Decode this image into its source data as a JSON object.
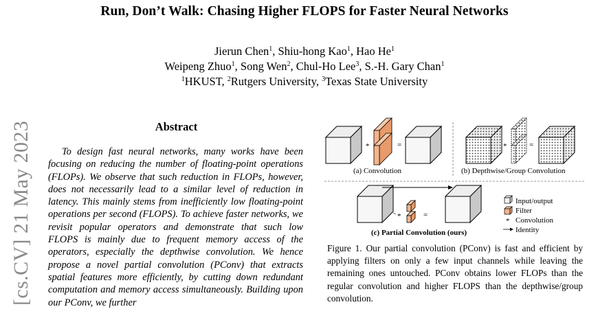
{
  "paper": {
    "title": "Run, Don’t Walk: Chasing Higher FLOPS for Faster Neural Networks",
    "authors_line1": [
      {
        "name": "Jierun Chen",
        "aff": "1"
      },
      {
        "name": "Shiu-hong Kao",
        "aff": "1"
      },
      {
        "name": "Hao He",
        "aff": "1"
      }
    ],
    "authors_line2": [
      {
        "name": "Weipeng Zhuo",
        "aff": "1"
      },
      {
        "name": "Song Wen",
        "aff": "2"
      },
      {
        "name": "Chul-Ho Lee",
        "aff": "3"
      },
      {
        "name": "S.-H. Gary Chan",
        "aff": "1"
      }
    ],
    "affiliations": [
      {
        "sup": "1",
        "name": "HKUST"
      },
      {
        "sup": "2",
        "name": "Rutgers University"
      },
      {
        "sup": "3",
        "name": "Texas State University"
      }
    ],
    "arxiv_stamp": "[cs.CV]  21 May 2023",
    "abstract_heading": "Abstract",
    "abstract_text": "To design fast neural networks, many works have been focusing on reducing the number of floating-point operations (FLOPs). We observe that such reduction in FLOPs, however, does not necessarily lead to a similar level of reduction in latency. This mainly stems from inefficiently low floating-point operations per second (FLOPS). To achieve faster networks, we revisit popular operators and demonstrate that such low FLOPS is mainly due to frequent memory access of the operators, especially the depthwise convolution. We hence propose a novel partial convolution (PConv) that extracts spatial features more efficiently, by cutting down redundant computation and memory access simultaneously. Building upon our PConv, we further",
    "figure": {
      "sub_a": "(a) Convolution",
      "sub_b": "(b) Depthwise/Group Convolution",
      "sub_c": "(c) Partial Convolution (ours)",
      "legend": [
        "Input/output",
        "Filter",
        "Convolution",
        "Identity"
      ],
      "star": "*",
      "equals": "=",
      "caption": "Figure 1. Our partial convolution (PConv) is fast and efficient by applying filters on only a few input channels while leaving the remaining ones untouched. PConv obtains lower FLOPs than the regular convolution and higher FLOPS than the depthwise/group convolution."
    }
  }
}
